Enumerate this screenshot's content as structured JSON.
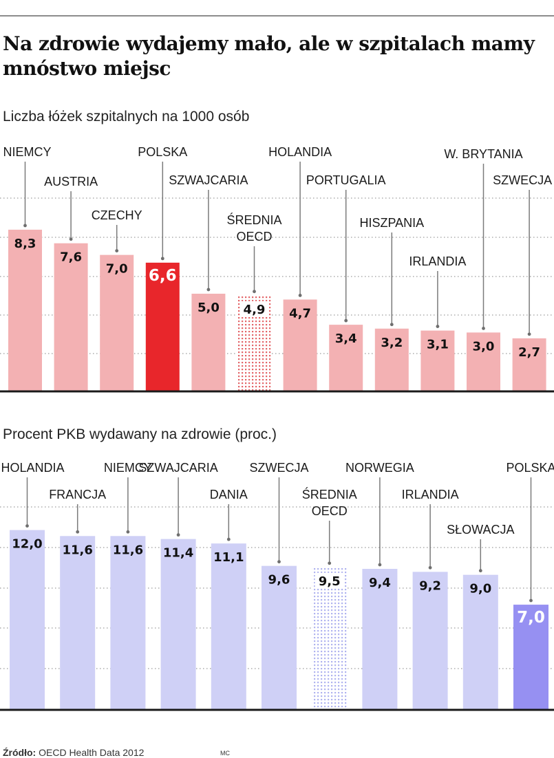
{
  "headline": "Na zdrowie wydajemy mało, ale w szpitalach mamy mnóstwo miejsc",
  "source": {
    "label": "Źródło:",
    "text": "OECD Health Data 2012"
  },
  "credit": "MC",
  "colors": {
    "beds_bar": "#f3b1b3",
    "beds_highlight": "#e8262b",
    "beds_average_dots": "#e36468",
    "gdp_bar": "#cfd0f6",
    "gdp_highlight": "#9690f2",
    "gdp_average_dots": "#b0b3ef"
  },
  "chart_data": [
    {
      "type": "bar",
      "title": "Liczba łóżek szpitalnych na 1000 osób",
      "categories": [
        "NIEMCY",
        "AUSTRIA",
        "CZECHY",
        "POLSKA",
        "SZWAJCARIA",
        "ŚREDNIA OECD",
        "HOLANDIA",
        "PORTUGALIA",
        "HISZPANIA",
        "IRLANDIA",
        "W. BRYTANIA",
        "SZWECJA"
      ],
      "values": [
        8.3,
        7.6,
        7.0,
        6.6,
        5.0,
        4.9,
        4.7,
        3.4,
        3.2,
        3.1,
        3.0,
        2.7
      ],
      "value_labels": [
        "8,3",
        "7,6",
        "7,0",
        "6,6",
        "5,0",
        "4,9",
        "4,7",
        "3,4",
        "3,2",
        "3,1",
        "3,0",
        "2,7"
      ],
      "highlight": "POLSKA",
      "average": "ŚREDNIA OECD",
      "ylim": [
        0,
        10
      ],
      "grid": true
    },
    {
      "type": "bar",
      "title": "Procent PKB wydawany na zdrowie (proc.)",
      "categories": [
        "HOLANDIA",
        "FRANCJA",
        "NIEMCY",
        "SZWAJCARIA",
        "DANIA",
        "SZWECJA",
        "ŚREDNIA OECD",
        "NORWEGIA",
        "IRLANDIA",
        "SŁOWACJA",
        "POLSKA"
      ],
      "values": [
        12.0,
        11.6,
        11.6,
        11.4,
        11.1,
        9.6,
        9.5,
        9.4,
        9.2,
        9.0,
        7.0
      ],
      "value_labels": [
        "12,0",
        "11,6",
        "11,6",
        "11,4",
        "11,1",
        "9,6",
        "9,5",
        "9,4",
        "9,2",
        "9,0",
        "7,0"
      ],
      "highlight": "POLSKA",
      "average": "ŚREDNIA OECD",
      "ylim": [
        0,
        14
      ],
      "grid": true
    }
  ]
}
